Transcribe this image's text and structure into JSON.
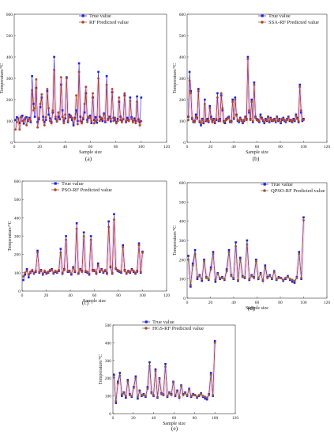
{
  "chart_data": [
    {
      "type": "line",
      "panel_label": "(a)",
      "xlabel": "Sample size",
      "ylabel": "Temperature/°C",
      "xlim": [
        0,
        120
      ],
      "ylim": [
        0,
        600
      ],
      "xticks": [
        "0",
        "20",
        "40",
        "60",
        "80",
        "100",
        "120"
      ],
      "yticks": [
        "0",
        "100",
        "200",
        "300",
        "400",
        "500",
        "600"
      ],
      "legend_placement": "top-center",
      "series": [
        {
          "name": "True value",
          "color": "#1f1fe0",
          "marker": "square",
          "values": [
            105,
            118,
            112,
            90,
            120,
            125,
            88,
            110,
            118,
            100,
            115,
            95,
            310,
            180,
            120,
            255,
            95,
            108,
            165,
            210,
            120,
            95,
            105,
            240,
            130,
            112,
            95,
            140,
            400,
            110,
            98,
            120,
            108,
            270,
            150,
            100,
            112,
            305,
            95,
            130,
            118,
            105,
            80,
            115,
            150,
            100,
            370,
            120,
            95,
            108,
            140,
            230,
            105,
            115,
            125,
            90,
            210,
            105,
            118,
            92,
            330,
            120,
            108,
            100,
            135,
            95,
            310,
            110,
            120,
            98,
            235,
            115,
            105,
            95,
            110,
            190,
            120,
            100,
            108,
            220,
            95,
            115,
            105,
            210,
            118,
            98,
            112,
            100,
            215,
            108,
            95,
            210
          ]
        },
        {
          "name": "RF Predicted value",
          "color": "#b0462a",
          "marker": "circle",
          "values": [
            60,
            95,
            110,
            60,
            118,
            100,
            102,
            115,
            80,
            105,
            110,
            100,
            245,
            150,
            160,
            295,
            70,
            115,
            180,
            225,
            105,
            80,
            118,
            250,
            160,
            100,
            90,
            150,
            340,
            120,
            100,
            140,
            112,
            305,
            120,
            90,
            130,
            300,
            100,
            120,
            125,
            115,
            90,
            110,
            220,
            85,
            330,
            100,
            90,
            115,
            180,
            260,
            95,
            120,
            115,
            100,
            230,
            90,
            100,
            105,
            300,
            100,
            115,
            110,
            130,
            100,
            270,
            105,
            115,
            110,
            250,
            100,
            115,
            90,
            100,
            210,
            105,
            95,
            110,
            230,
            100,
            105,
            100,
            195,
            110,
            95,
            105,
            90,
            190,
            100,
            80,
            100
          ]
        }
      ]
    },
    {
      "type": "line",
      "panel_label": "(b)",
      "xlabel": "Sample size",
      "ylabel": "Temperature/°C",
      "xlim": [
        0,
        120
      ],
      "ylim": [
        0,
        600
      ],
      "xticks": [
        "0",
        "20",
        "40",
        "60",
        "80",
        "100",
        "120"
      ],
      "yticks": [
        "0",
        "100",
        "200",
        "300",
        "400",
        "500",
        "600"
      ],
      "legend_placement": "top-right",
      "series": [
        {
          "name": "True value",
          "color": "#1f1fe0",
          "marker": "square",
          "values": [
            120,
            330,
            240,
            110,
            95,
            100,
            130,
            115,
            250,
            95,
            80,
            110,
            90,
            200,
            100,
            110,
            95,
            170,
            120,
            100,
            110,
            90,
            105,
            230,
            100,
            110,
            220,
            150,
            100,
            90,
            110,
            115,
            120,
            95,
            100,
            200,
            110,
            210,
            130,
            100,
            95,
            115,
            105,
            90,
            100,
            120,
            110,
            400,
            140,
            110,
            200,
            95,
            280,
            120,
            110,
            105,
            95,
            130,
            115,
            100,
            90,
            110,
            100,
            120,
            95,
            115,
            100,
            105,
            110,
            95,
            120,
            100,
            110,
            90,
            105,
            115,
            100,
            95,
            110,
            120,
            100,
            105,
            95,
            110,
            100,
            130,
            115,
            95,
            270,
            140,
            100,
            110
          ]
        },
        {
          "name": "SSA-RF Predicted value",
          "color": "#b0462a",
          "marker": "circle",
          "values": [
            105,
            290,
            230,
            115,
            100,
            95,
            120,
            110,
            240,
            100,
            90,
            105,
            95,
            180,
            105,
            100,
            100,
            160,
            110,
            95,
            105,
            95,
            110,
            210,
            105,
            100,
            230,
            160,
            95,
            100,
            105,
            110,
            115,
            100,
            95,
            190,
            115,
            200,
            125,
            105,
            100,
            110,
            100,
            95,
            105,
            115,
            105,
            390,
            150,
            105,
            190,
            100,
            270,
            115,
            105,
            100,
            100,
            120,
            110,
            105,
            95,
            105,
            105,
            115,
            100,
            110,
            105,
            100,
            105,
            100,
            115,
            105,
            105,
            95,
            110,
            110,
            105,
            100,
            105,
            115,
            105,
            100,
            100,
            105,
            105,
            125,
            110,
            100,
            260,
            150,
            105,
            105
          ]
        }
      ]
    },
    {
      "type": "line",
      "panel_label": "(c)",
      "xlabel": "Sample size",
      "ylabel": "Temperature/°C",
      "xlim": [
        0,
        120
      ],
      "ylim": [
        0,
        600
      ],
      "xticks": [
        "0",
        "20",
        "40",
        "60",
        "80",
        "100",
        "120"
      ],
      "yticks": [
        "0",
        "100",
        "200",
        "300",
        "400",
        "500",
        "600"
      ],
      "legend_placement": "top-left",
      "series": [
        {
          "name": "True value",
          "color": "#1f1fe0",
          "marker": "square",
          "values": [
            60,
            90,
            120,
            75,
            100,
            110,
            95,
            105,
            220,
            100,
            115,
            90,
            105,
            95,
            100,
            110,
            120,
            95,
            105,
            100,
            110,
            230,
            95,
            120,
            300,
            105,
            110,
            90,
            130,
            105,
            370,
            95,
            120,
            110,
            320,
            105,
            100,
            90,
            300,
            115,
            110,
            95,
            150,
            105,
            120,
            100,
            110,
            95,
            380,
            130,
            95,
            420,
            120,
            110,
            105,
            100,
            250,
            115,
            95,
            110,
            100,
            120,
            105,
            95,
            110,
            260,
            100,
            215
          ]
        },
        {
          "name": "PSO-RF Predicted value",
          "color": "#b0462a",
          "marker": "circle",
          "values": [
            80,
            100,
            110,
            90,
            105,
            115,
            100,
            110,
            210,
            105,
            110,
            95,
            110,
            100,
            105,
            115,
            115,
            100,
            110,
            105,
            115,
            210,
            100,
            115,
            280,
            110,
            105,
            95,
            125,
            110,
            340,
            100,
            115,
            105,
            300,
            110,
            105,
            95,
            280,
            110,
            115,
            100,
            140,
            110,
            115,
            105,
            115,
            100,
            350,
            135,
            100,
            390,
            125,
            115,
            110,
            105,
            240,
            110,
            100,
            105,
            105,
            115,
            110,
            100,
            105,
            250,
            105,
            210
          ]
        }
      ]
    },
    {
      "type": "line",
      "panel_label": "(d)",
      "xlabel": "Sample size",
      "ylabel": "Temperature/°C",
      "xlim": [
        0,
        120
      ],
      "ylim": [
        0,
        600
      ],
      "xticks": [
        "0",
        "20",
        "40",
        "60",
        "80",
        "100",
        "120"
      ],
      "yticks": [
        "0",
        "100",
        "200",
        "300",
        "400",
        "500",
        "600"
      ],
      "legend_placement": "top-right",
      "series": [
        {
          "name": "True value",
          "color": "#1f1fe0",
          "marker": "square",
          "values": [
            220,
            60,
            180,
            250,
            100,
            120,
            90,
            200,
            110,
            95,
            160,
            240,
            85,
            130,
            100,
            110,
            95,
            150,
            250,
            120,
            100,
            290,
            90,
            210,
            115,
            105,
            300,
            95,
            120,
            110,
            200,
            100,
            130,
            90,
            170,
            110,
            120,
            100,
            140,
            95,
            110,
            105,
            90,
            100,
            115,
            95,
            85,
            80,
            110,
            240,
            100,
            420
          ]
        },
        {
          "name": "QPSO-RF Predicted value",
          "color": "#8e5a3c",
          "marker": "circle",
          "values": [
            200,
            70,
            170,
            230,
            110,
            115,
            100,
            190,
            105,
            100,
            150,
            230,
            95,
            125,
            105,
            105,
            100,
            140,
            240,
            115,
            105,
            270,
            95,
            200,
            110,
            110,
            280,
            100,
            115,
            105,
            190,
            105,
            125,
            95,
            160,
            105,
            115,
            105,
            135,
            100,
            105,
            105,
            95,
            105,
            110,
            100,
            95,
            90,
            105,
            230,
            105,
            405
          ]
        }
      ]
    },
    {
      "type": "line",
      "panel_label": "(e)",
      "xlabel": "Sample size",
      "ylabel": "Temperature/°C",
      "xlim": [
        0,
        120
      ],
      "ylim": [
        0,
        500
      ],
      "xticks": [
        "0",
        "20",
        "40",
        "60",
        "80",
        "100",
        "120"
      ],
      "yticks": [
        "0",
        "100",
        "200",
        "300",
        "400",
        "500"
      ],
      "legend_placement": "top-left",
      "series": [
        {
          "name": "True value",
          "color": "#1f1fe0",
          "marker": "square",
          "values": [
            220,
            60,
            180,
            230,
            100,
            120,
            90,
            190,
            110,
            95,
            150,
            210,
            85,
            130,
            100,
            110,
            95,
            150,
            290,
            120,
            100,
            250,
            90,
            200,
            115,
            105,
            280,
            95,
            120,
            110,
            180,
            100,
            130,
            90,
            160,
            110,
            120,
            100,
            140,
            95,
            110,
            105,
            90,
            100,
            115,
            95,
            85,
            80,
            110,
            230,
            100,
            410
          ]
        },
        {
          "name": "HGS-RF Predicted value",
          "color": "#8e5a3c",
          "marker": "circle",
          "values": [
            205,
            70,
            170,
            215,
            110,
            115,
            100,
            180,
            105,
            100,
            145,
            200,
            95,
            125,
            105,
            105,
            100,
            140,
            270,
            115,
            105,
            240,
            95,
            195,
            110,
            110,
            265,
            100,
            115,
            105,
            175,
            105,
            125,
            95,
            155,
            105,
            115,
            105,
            135,
            100,
            105,
            105,
            95,
            105,
            110,
            100,
            95,
            90,
            105,
            220,
            105,
            400
          ]
        }
      ]
    }
  ]
}
